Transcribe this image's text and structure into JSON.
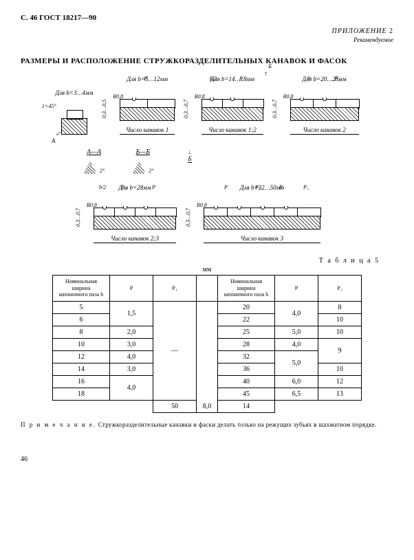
{
  "header": "С. 46 ГОСТ 18217—90",
  "appendix_label": "ПРИЛОЖЕНИЕ",
  "appendix_num": "2",
  "recommended": "Рекомендуемое",
  "main_title": "РАЗМЕРЫ И РАСПОЛОЖЕНИЕ СТРУЖКОРАЗДЕЛИТЕЛЬНЫХ КАНАВОК И ФАСОК",
  "diagrams": {
    "d1": {
      "cond": "Для b=3…4мм",
      "chamfer": "1×45°",
      "sec": "А"
    },
    "d2": {
      "cond": "Для b=5…12мм",
      "r": "R0,8",
      "h": "0,3…0,5",
      "p": "P",
      "cap": "Число канавок 1"
    },
    "d3": {
      "cond": "Для b=14…18мм",
      "r": "R0,8",
      "h": "0,3…0,7",
      "b2": "b/2",
      "p": "P",
      "sec": "Б",
      "cap": "Число канавок 1;2"
    },
    "d4": {
      "cond": "Для b=20…25мм",
      "r": "R0,8",
      "h": "0,3…0,7",
      "p": "P",
      "p1": "P₁",
      "cap": "Число канавок 2"
    },
    "secA": {
      "label": "А—А",
      "angle": "2°"
    },
    "secB": {
      "label": "Б—Б",
      "angle": "2°"
    },
    "d5": {
      "cond": "Для b=28мм",
      "b2": "b/2",
      "r": "R0,8",
      "h": "0,3…0,7",
      "p": "P",
      "p1": "P₁",
      "cap": "Число канавок 2;3"
    },
    "d6": {
      "cond": "Для b=32…50мм",
      "r": "R0,8",
      "h": "0,3…0,7",
      "p": "P",
      "p1": "P₁",
      "cap": "Число канавок 3"
    }
  },
  "table": {
    "title": "Т а б л и ц а  5",
    "unit": "мм",
    "colhead_b": "Номинальная ширина шпоночного паза b",
    "col_P": "P",
    "col_P1": "P₁",
    "left_rows": [
      {
        "b": "5",
        "P": "1,5",
        "P_span": 2,
        "P1": "—",
        "P1_span": 8
      },
      {
        "b": "6"
      },
      {
        "b": "8",
        "P": "2,0",
        "P_span": 1
      },
      {
        "b": "10",
        "P": "3,0",
        "P_span": 1
      },
      {
        "b": "12",
        "P": "4,0",
        "P_span": 1
      },
      {
        "b": "14",
        "P": "3,0",
        "P_span": 1
      },
      {
        "b": "16",
        "P": "4,0",
        "P_span": 2
      },
      {
        "b": "18"
      }
    ],
    "right_rows": [
      {
        "b": "20",
        "P": "4,0",
        "P_span": 2,
        "P1": "8",
        "P1_span": 1
      },
      {
        "b": "22",
        "P1": "10",
        "P1_span": 1,
        "P1_merge_next": false
      },
      {
        "b": "25",
        "P": "5,0",
        "P_span": 1,
        "P1": "10",
        "P1_span": 1
      },
      {
        "b": "28",
        "P": "4,0",
        "P_span": 1,
        "P1": "9",
        "P1_span": 2
      },
      {
        "b": "32",
        "P": "5,0",
        "P_span": 2
      },
      {
        "b": "36",
        "P1": "10",
        "P1_span": 1
      },
      {
        "b": "40",
        "P": "6,0",
        "P_span": 1,
        "P1": "12",
        "P1_span": 1
      },
      {
        "b": "45",
        "P": "6,5",
        "P_span": 1,
        "P1": "13",
        "P1_span": 1
      },
      {
        "b": "50",
        "P": "8,0",
        "P_span": 1,
        "P1": "14",
        "P1_span": 1
      }
    ]
  },
  "note_label": "П р и м е ч а н и е.",
  "note_text": "Стружкоразделительные канавки и фаски делать только на режущих зубьях в шахматном порядке.",
  "page_num": "46"
}
